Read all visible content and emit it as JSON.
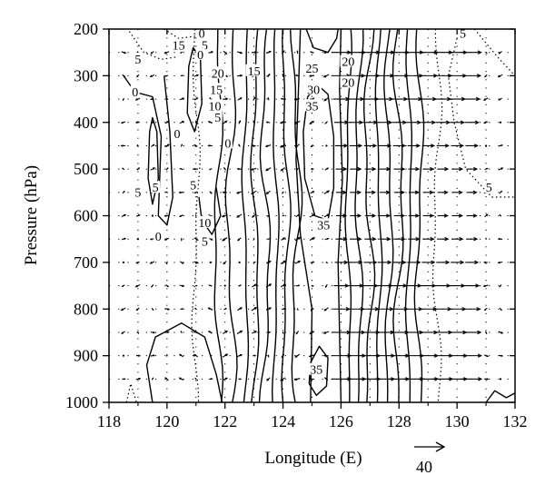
{
  "chart_data": {
    "type": "contour",
    "title": "",
    "xlabel": "Longitude (E)",
    "ylabel": "Pressure (hPa)",
    "xlim": [
      118,
      132
    ],
    "ylim": [
      1000,
      200
    ],
    "y_reversed": true,
    "x_ticks": [
      118,
      120,
      122,
      124,
      126,
      128,
      130,
      132
    ],
    "y_ticks": [
      200,
      300,
      400,
      500,
      600,
      700,
      800,
      900,
      1000
    ],
    "grid": "dotted",
    "contour_labels": [
      {
        "text": "5",
        "x": 119.0,
        "p": 270
      },
      {
        "text": "15",
        "x": 120.4,
        "p": 240
      },
      {
        "text": "0",
        "x": 121.2,
        "p": 215
      },
      {
        "text": "5",
        "x": 121.3,
        "p": 240
      },
      {
        "text": "0",
        "x": 121.15,
        "p": 260
      },
      {
        "text": "20",
        "x": 121.75,
        "p": 300
      },
      {
        "text": "15",
        "x": 123.0,
        "p": 295
      },
      {
        "text": "15",
        "x": 121.7,
        "p": 335
      },
      {
        "text": "0",
        "x": 118.9,
        "p": 340
      },
      {
        "text": "10",
        "x": 121.65,
        "p": 370
      },
      {
        "text": "5",
        "x": 121.75,
        "p": 395
      },
      {
        "text": "0",
        "x": 120.35,
        "p": 430
      },
      {
        "text": "0",
        "x": 122.1,
        "p": 450
      },
      {
        "text": "25",
        "x": 125.0,
        "p": 290
      },
      {
        "text": "20",
        "x": 126.25,
        "p": 275
      },
      {
        "text": "20",
        "x": 126.25,
        "p": 320
      },
      {
        "text": "30",
        "x": 125.05,
        "p": 335
      },
      {
        "text": "35",
        "x": 125.0,
        "p": 370
      },
      {
        "text": "5",
        "x": 130.2,
        "p": 215
      },
      {
        "text": "5",
        "x": 119.0,
        "p": 555
      },
      {
        "text": "5",
        "x": 119.6,
        "p": 545
      },
      {
        "text": "5",
        "x": 120.9,
        "p": 540
      },
      {
        "text": "10",
        "x": 121.3,
        "p": 620
      },
      {
        "text": "0",
        "x": 119.7,
        "p": 650
      },
      {
        "text": "5",
        "x": 121.3,
        "p": 660
      },
      {
        "text": "35",
        "x": 125.4,
        "p": 625
      },
      {
        "text": "5",
        "x": 131.1,
        "p": 545
      },
      {
        "text": "35",
        "x": 125.15,
        "p": 935
      }
    ],
    "reference_vector": {
      "label": "40",
      "magnitude": 40
    }
  }
}
